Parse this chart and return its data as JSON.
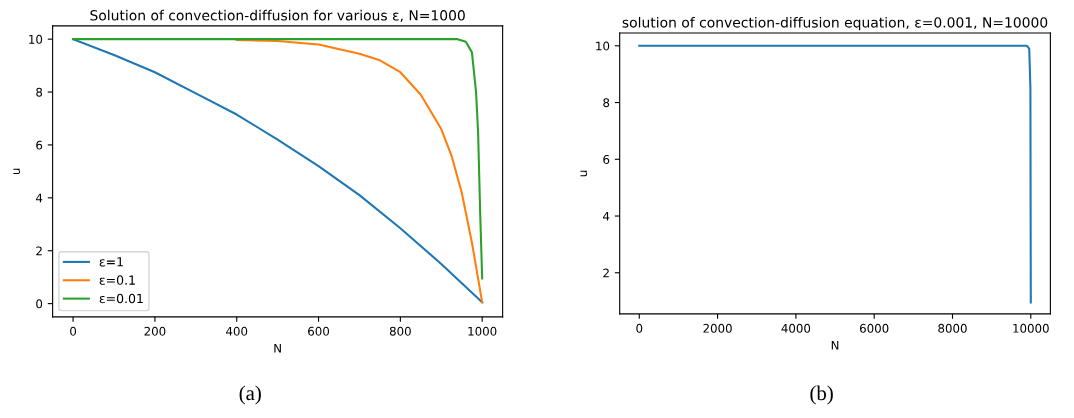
{
  "chart_data": [
    {
      "type": "line",
      "title": "Solution of convection-diffusion for various ε, N=1000",
      "xlabel": "N",
      "ylabel": "u",
      "xlim": [
        -50,
        1050
      ],
      "xticks": [
        0,
        200,
        400,
        600,
        800,
        1000
      ],
      "ylim": [
        -0.5,
        10.5
      ],
      "yticks": [
        0,
        2,
        4,
        6,
        8,
        10
      ],
      "grid": false,
      "legend": "bottom left",
      "marker": "none",
      "line_style": "solid",
      "annotations": [
        "(a)"
      ],
      "series": [
        {
          "name": "ε=1",
          "color": "#1f77b4",
          "x": [
            0,
            100,
            200,
            300,
            400,
            500,
            600,
            700,
            800,
            900,
            1000
          ],
          "values": [
            10,
            9.4,
            8.75,
            7.95,
            7.15,
            6.2,
            5.2,
            4.1,
            2.85,
            1.5,
            0.05
          ]
        },
        {
          "name": "ε=0.1",
          "color": "#ff7f0e",
          "x": [
            400,
            500,
            600,
            700,
            750,
            800,
            850,
            900,
            925,
            950,
            975,
            1000
          ],
          "values": [
            9.97,
            9.93,
            9.8,
            9.45,
            9.2,
            8.75,
            7.9,
            6.6,
            5.6,
            4.2,
            2.3,
            0.05
          ]
        },
        {
          "name": "ε=0.01",
          "color": "#2ca02c",
          "x": [
            0,
            940,
            960,
            975,
            985,
            990,
            995,
            1000
          ],
          "values": [
            10,
            10,
            9.9,
            9.5,
            8,
            6.5,
            3.5,
            0.95
          ]
        }
      ]
    },
    {
      "type": "line",
      "title": "solution of convection-diffusion equation, ε=0.001, N=10000",
      "xlabel": "N",
      "ylabel": "u",
      "xlim": [
        -500,
        10500
      ],
      "xticks": [
        0,
        2000,
        4000,
        6000,
        8000,
        10000
      ],
      "ylim": [
        0.55,
        10.45
      ],
      "yticks": [
        2,
        4,
        6,
        8,
        10
      ],
      "grid": false,
      "marker": "none",
      "line_style": "solid",
      "annotations": [
        "(b)"
      ],
      "series": [
        {
          "color": "#1f77b4",
          "x": [
            0,
            9900,
            9960,
            9990,
            10000
          ],
          "values": [
            10,
            10,
            9.9,
            8.5,
            0.95
          ]
        }
      ]
    }
  ]
}
